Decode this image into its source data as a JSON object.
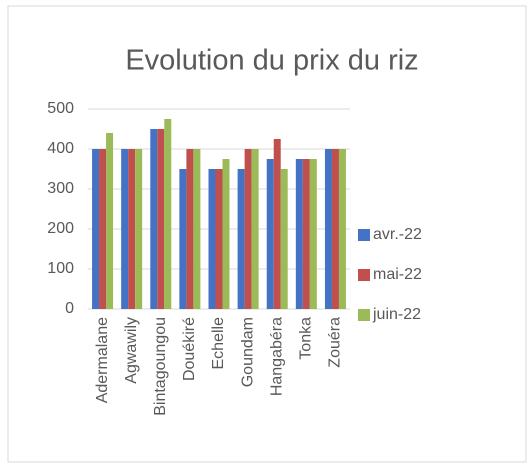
{
  "chart_data": {
    "type": "bar",
    "title": "Evolution du prix du riz",
    "categories": [
      "Adermalane",
      "Agwawily",
      "Bintagoungou",
      "Douékiré",
      "Echelle",
      "Goundam",
      "Hangabéra",
      "Tonka",
      "Zouéra"
    ],
    "series": [
      {
        "name": "avr.-22",
        "color": "#4472c4",
        "values": [
          400,
          400,
          450,
          350,
          350,
          350,
          375,
          375,
          400
        ]
      },
      {
        "name": "mai-22",
        "color": "#c0504d",
        "values": [
          400,
          400,
          450,
          400,
          350,
          400,
          425,
          375,
          400
        ]
      },
      {
        "name": "juin-22",
        "color": "#9bbb59",
        "values": [
          440,
          400,
          475,
          400,
          375,
          400,
          350,
          375,
          400
        ]
      }
    ],
    "ylim": [
      0,
      500
    ],
    "yticks": [
      0,
      100,
      200,
      300,
      400,
      500
    ],
    "grid": true,
    "legend": "right"
  }
}
